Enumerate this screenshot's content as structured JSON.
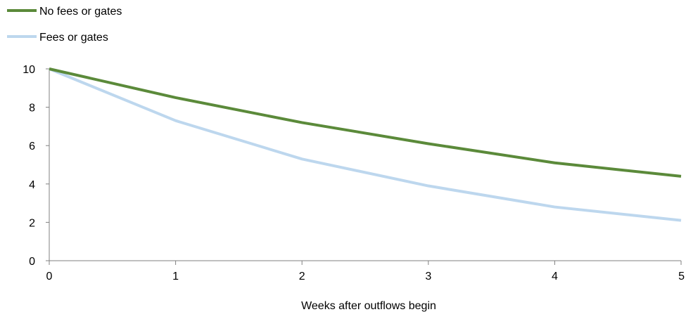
{
  "chart_data": {
    "type": "line",
    "title": "",
    "xlabel": "Weeks after outflows begin",
    "ylabel": "",
    "x": [
      0,
      1,
      2,
      3,
      4,
      5
    ],
    "xlim": [
      0,
      5
    ],
    "ylim": [
      0,
      10
    ],
    "xticks": [
      "0",
      "1",
      "2",
      "3",
      "4",
      "5"
    ],
    "yticks": [
      "0",
      "2",
      "4",
      "6",
      "8",
      "10"
    ],
    "grid": false,
    "legend_position": "top-left",
    "series": [
      {
        "name": "No fees or gates",
        "color": "#5b8a3a",
        "values": [
          10,
          8.5,
          7.2,
          6.1,
          5.1,
          4.4
        ]
      },
      {
        "name": "Fees or gates",
        "color": "#bdd7ee",
        "values": [
          10,
          7.3,
          5.3,
          3.9,
          2.8,
          2.1
        ]
      }
    ]
  }
}
